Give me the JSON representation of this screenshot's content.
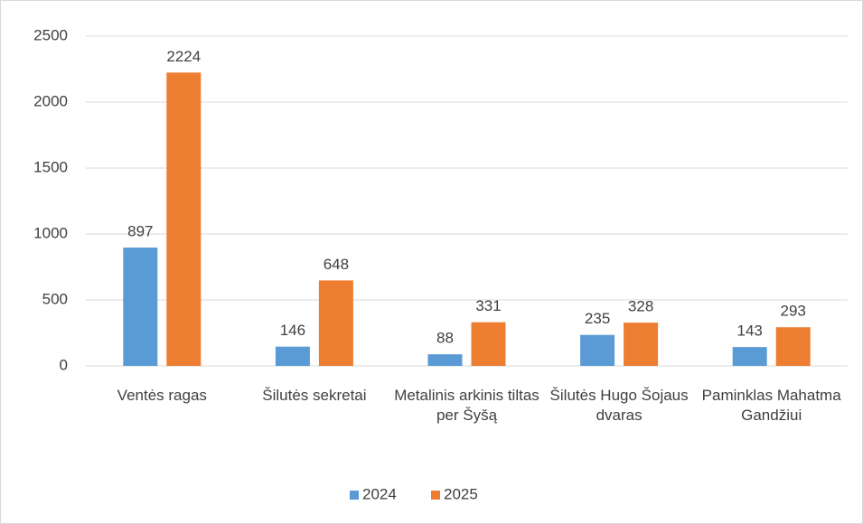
{
  "chart_data": {
    "type": "bar",
    "categories": [
      "Ventės ragas",
      "Šilutės sekretai",
      "Metalinis arkinis tiltas per Šyšą",
      "Šilutės Hugo Šojaus dvaras",
      "Paminklas Mahatma Gandžiui"
    ],
    "series": [
      {
        "name": "2024",
        "color": "#5b9bd5",
        "values": [
          897,
          146,
          88,
          235,
          143
        ]
      },
      {
        "name": "2025",
        "color": "#ed7d31",
        "values": [
          2224,
          648,
          331,
          328,
          293
        ]
      }
    ],
    "ylim": [
      0,
      2500
    ],
    "yticks": [
      0,
      500,
      1000,
      1500,
      2000,
      2500
    ],
    "grid": true,
    "legend": "bottom"
  }
}
